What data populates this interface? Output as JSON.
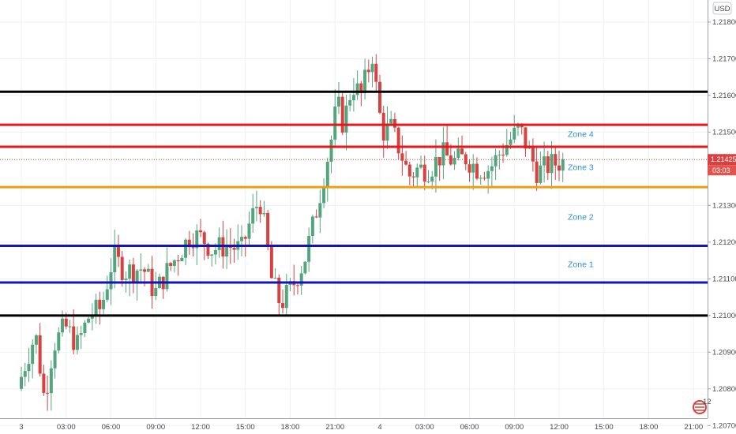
{
  "currency_label": "USD",
  "badge_number": "12",
  "last_price_label": "1.21425",
  "countdown_label": "03:03",
  "colors": {
    "up": "#53a57d",
    "down": "#d8413f",
    "black_line": "#000000",
    "red_line": "#e3191c",
    "orange_line": "#f39c12",
    "blue_line": "#1515b5",
    "zone_text": "#2a8fd6"
  },
  "chart_data": {
    "type": "candlestick",
    "symbol_quote": "USD",
    "ylim": [
      1.2072,
      1.2186
    ],
    "y_ticks": [
      1.207,
      1.208,
      1.209,
      1.21,
      1.211,
      1.212,
      1.213,
      1.215,
      1.216,
      1.217,
      1.218
    ],
    "y_tick_labels": [
      "1.20700",
      "1.20800",
      "1.20900",
      "1.21000",
      "1.21100",
      "1.21200",
      "1.21300",
      "1.21500",
      "1.21600",
      "1.21700",
      "1.21800"
    ],
    "x_tick_labels": [
      "3",
      "03:00",
      "06:00",
      "09:00",
      "12:00",
      "15:00",
      "18:00",
      "21:00",
      "4",
      "03:00",
      "06:00",
      "09:00",
      "12:00",
      "15:00",
      "18:00",
      "21:00"
    ],
    "x_tick_hours": [
      0,
      3,
      6,
      9,
      12,
      15,
      18,
      21,
      24,
      27,
      30,
      33,
      36,
      39,
      42,
      45
    ],
    "horizontal_levels": [
      {
        "price": 1.2161,
        "color": "black"
      },
      {
        "price": 1.2152,
        "color": "red"
      },
      {
        "price": 1.2146,
        "color": "red"
      },
      {
        "price": 1.2135,
        "color": "orange"
      },
      {
        "price": 1.2119,
        "color": "blue"
      },
      {
        "price": 1.2109,
        "color": "blue"
      },
      {
        "price": 1.21,
        "color": "black"
      }
    ],
    "zones": [
      {
        "label": "Zone 4",
        "price": 1.21495
      },
      {
        "label": "Zone 3",
        "price": 1.21405
      },
      {
        "label": "Zone 2",
        "price": 1.2127
      },
      {
        "label": "Zone 1",
        "price": 1.2114
      }
    ],
    "current_price": 1.21425,
    "anchor_points": [
      [
        0,
        1.208
      ],
      [
        0.6,
        1.2088
      ],
      [
        1.2,
        1.2095
      ],
      [
        1.8,
        1.2077
      ],
      [
        2.4,
        1.2092
      ],
      [
        3.2,
        1.2097
      ],
      [
        4,
        1.2092
      ],
      [
        4.8,
        1.21
      ],
      [
        5.6,
        1.2102
      ],
      [
        6.4,
        1.2116
      ],
      [
        7.2,
        1.2112
      ],
      [
        8.4,
        1.2113
      ],
      [
        9.2,
        1.2106
      ],
      [
        10,
        1.2112
      ],
      [
        10.8,
        1.2117
      ],
      [
        11.6,
        1.2122
      ],
      [
        12.4,
        1.2121
      ],
      [
        13,
        1.2118
      ],
      [
        14,
        1.2119
      ],
      [
        15,
        1.2118
      ],
      [
        15.6,
        1.2126
      ],
      [
        16.2,
        1.2132
      ],
      [
        16.6,
        1.2122
      ],
      [
        17,
        1.211
      ],
      [
        17.6,
        1.2103
      ],
      [
        18.4,
        1.2108
      ],
      [
        19.2,
        1.2115
      ],
      [
        19.8,
        1.2125
      ],
      [
        20.4,
        1.2136
      ],
      [
        21,
        1.2148
      ],
      [
        21.4,
        1.2158
      ],
      [
        21.8,
        1.2152
      ],
      [
        22.4,
        1.2163
      ],
      [
        23,
        1.216
      ],
      [
        23.8,
        1.2172
      ],
      [
        24,
        1.2162
      ],
      [
        24.4,
        1.215
      ],
      [
        25,
        1.2151
      ],
      [
        25.6,
        1.2145
      ],
      [
        26.2,
        1.2138
      ],
      [
        26.8,
        1.214
      ],
      [
        27.6,
        1.214
      ],
      [
        28.4,
        1.2144
      ],
      [
        29.2,
        1.2142
      ],
      [
        30,
        1.2143
      ],
      [
        30.8,
        1.214
      ],
      [
        31.6,
        1.214
      ],
      [
        32.4,
        1.2145
      ],
      [
        33,
        1.2148
      ],
      [
        33.6,
        1.2151
      ],
      [
        34.2,
        1.2145
      ],
      [
        34.8,
        1.2139
      ],
      [
        35.6,
        1.2141
      ],
      [
        36.4,
        1.2142
      ]
    ]
  }
}
